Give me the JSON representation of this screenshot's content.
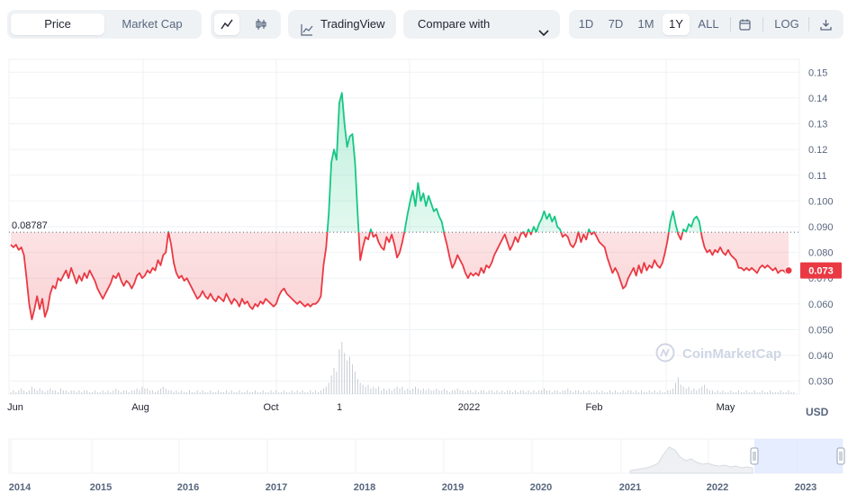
{
  "toolbar": {
    "price_label": "Price",
    "market_cap_label": "Market Cap",
    "line_icon": "line-chart-icon",
    "candle_icon": "candlestick-icon",
    "tradingview_label": "TradingView",
    "tradingview_icon": "tradingview-icon",
    "compare_label": "Compare with",
    "compare_icon": "chevron-down-icon",
    "ranges": [
      "1D",
      "7D",
      "1M",
      "1Y",
      "ALL"
    ],
    "active_range": "1Y",
    "calendar_icon": "calendar-icon",
    "log_label": "LOG",
    "download_icon": "download-icon"
  },
  "watermark": "CoinMarketCap",
  "currency_label": "USD",
  "colors": {
    "up": "#16c784",
    "down": "#ea3943",
    "grid": "#eff2f5",
    "text": "#58667e",
    "navigator_fill": "#dbe5ff"
  },
  "chart_data": {
    "type": "line",
    "title": "",
    "xlabel": "",
    "ylabel": "",
    "y_unit": "USD",
    "ylim": [
      0.025,
      0.155
    ],
    "y_ticks": [
      "0.030",
      "0.040",
      "0.050",
      "0.060",
      "0.070",
      "0.080",
      "0.090",
      "0.100",
      "0.11",
      "0.12",
      "0.13",
      "0.14",
      "0.15"
    ],
    "x_tick_labels": [
      "Jun",
      "Aug",
      "Oct",
      "1",
      "2022",
      "Feb",
      "May"
    ],
    "baseline_value": 0.08787,
    "baseline_label": "0.08787",
    "current_price_label": "0.073",
    "grid": true,
    "legend": "none",
    "series": [
      {
        "values": [
          0.083,
          0.082,
          0.083,
          0.081,
          0.082,
          0.079,
          0.07,
          0.06,
          0.054,
          0.058,
          0.063,
          0.058,
          0.062,
          0.055,
          0.058,
          0.064,
          0.067,
          0.066,
          0.07,
          0.069,
          0.071,
          0.073,
          0.07,
          0.074,
          0.071,
          0.068,
          0.071,
          0.069,
          0.072,
          0.07,
          0.073,
          0.071,
          0.069,
          0.066,
          0.064,
          0.062,
          0.064,
          0.066,
          0.068,
          0.071,
          0.07,
          0.072,
          0.069,
          0.067,
          0.069,
          0.068,
          0.066,
          0.068,
          0.071,
          0.072,
          0.07,
          0.071,
          0.073,
          0.072,
          0.074,
          0.073,
          0.077,
          0.075,
          0.079,
          0.08,
          0.088,
          0.083,
          0.076,
          0.072,
          0.07,
          0.071,
          0.069,
          0.07,
          0.068,
          0.066,
          0.064,
          0.062,
          0.063,
          0.065,
          0.063,
          0.062,
          0.064,
          0.062,
          0.061,
          0.063,
          0.062,
          0.061,
          0.064,
          0.062,
          0.06,
          0.062,
          0.061,
          0.059,
          0.062,
          0.06,
          0.061,
          0.059,
          0.058,
          0.06,
          0.059,
          0.061,
          0.06,
          0.062,
          0.061,
          0.06,
          0.059,
          0.06,
          0.063,
          0.065,
          0.066,
          0.064,
          0.063,
          0.062,
          0.061,
          0.06,
          0.061,
          0.06,
          0.059,
          0.06,
          0.059,
          0.06,
          0.06,
          0.061,
          0.063,
          0.075,
          0.082,
          0.095,
          0.115,
          0.12,
          0.116,
          0.138,
          0.142,
          0.13,
          0.121,
          0.125,
          0.126,
          0.115,
          0.095,
          0.077,
          0.082,
          0.086,
          0.085,
          0.089,
          0.086,
          0.087,
          0.084,
          0.082,
          0.081,
          0.086,
          0.084,
          0.087,
          0.083,
          0.078,
          0.08,
          0.084,
          0.089,
          0.095,
          0.1,
          0.104,
          0.098,
          0.107,
          0.1,
          0.103,
          0.098,
          0.102,
          0.099,
          0.096,
          0.097,
          0.094,
          0.092,
          0.087,
          0.083,
          0.078,
          0.074,
          0.076,
          0.079,
          0.077,
          0.075,
          0.072,
          0.07,
          0.072,
          0.071,
          0.072,
          0.071,
          0.074,
          0.072,
          0.075,
          0.074,
          0.076,
          0.079,
          0.081,
          0.083,
          0.085,
          0.087,
          0.084,
          0.081,
          0.083,
          0.086,
          0.084,
          0.087,
          0.088,
          0.086,
          0.089,
          0.087,
          0.09,
          0.088,
          0.091,
          0.093,
          0.096,
          0.093,
          0.095,
          0.092,
          0.094,
          0.09,
          0.089,
          0.086,
          0.087,
          0.086,
          0.083,
          0.082,
          0.084,
          0.088,
          0.084,
          0.087,
          0.085,
          0.089,
          0.087,
          0.088,
          0.086,
          0.084,
          0.083,
          0.082,
          0.078,
          0.075,
          0.072,
          0.074,
          0.072,
          0.069,
          0.066,
          0.067,
          0.07,
          0.072,
          0.074,
          0.071,
          0.075,
          0.072,
          0.076,
          0.073,
          0.075,
          0.074,
          0.077,
          0.075,
          0.074,
          0.076,
          0.08,
          0.085,
          0.092,
          0.096,
          0.091,
          0.087,
          0.085,
          0.089,
          0.088,
          0.091,
          0.09,
          0.093,
          0.094,
          0.092,
          0.086,
          0.082,
          0.08,
          0.081,
          0.079,
          0.081,
          0.08,
          0.082,
          0.08,
          0.079,
          0.081,
          0.079,
          0.078,
          0.077,
          0.074,
          0.074,
          0.073,
          0.074,
          0.073,
          0.074,
          0.073,
          0.072,
          0.074,
          0.075,
          0.074,
          0.075,
          0.074,
          0.073,
          0.074,
          0.072,
          0.073,
          0.073,
          0.072,
          0.073
        ]
      }
    ],
    "volume": [
      1,
      2,
      1,
      2,
      3,
      2,
      1,
      2,
      4,
      3,
      2,
      3,
      2,
      1,
      2,
      3,
      2,
      2,
      1,
      3,
      2,
      2,
      1,
      2,
      2,
      1,
      2,
      1,
      2,
      2,
      1,
      1,
      2,
      1,
      1,
      2,
      1,
      2,
      1,
      2,
      3,
      2,
      1,
      2,
      2,
      1,
      2,
      2,
      3,
      2,
      4,
      3,
      3,
      2,
      2,
      1,
      2,
      3,
      4,
      3,
      2,
      2,
      1,
      2,
      1,
      2,
      1,
      1,
      2,
      1,
      1,
      2,
      1,
      2,
      1,
      1,
      2,
      1,
      1,
      2,
      1,
      1,
      2,
      1,
      2,
      1,
      1,
      2,
      1,
      1,
      2,
      1,
      1,
      2,
      1,
      1,
      2,
      1,
      1,
      2,
      1,
      2,
      1,
      1,
      2,
      1,
      1,
      2,
      1,
      2,
      1,
      2,
      1,
      1,
      2,
      1,
      2,
      1,
      2,
      3,
      4,
      6,
      10,
      14,
      12,
      24,
      28,
      22,
      18,
      20,
      16,
      12,
      8,
      6,
      5,
      4,
      5,
      3,
      4,
      3,
      4,
      2,
      3,
      2,
      3,
      2,
      3,
      4,
      3,
      4,
      2,
      3,
      2,
      3,
      4,
      3,
      2,
      3,
      2,
      3,
      2,
      2,
      3,
      2,
      2,
      3,
      2,
      1,
      2,
      2,
      3,
      2,
      2,
      1,
      2,
      2,
      1,
      2,
      1,
      2,
      2,
      1,
      2,
      2,
      1,
      2,
      1,
      2,
      1,
      2,
      2,
      1,
      2,
      1,
      2,
      2,
      1,
      2,
      1,
      2,
      1,
      2,
      2,
      3,
      2,
      2,
      1,
      2,
      2,
      1,
      2,
      2,
      3,
      2,
      1,
      2,
      2,
      1,
      2,
      1,
      2,
      1,
      1,
      2,
      1,
      2,
      1,
      1,
      2,
      1,
      2,
      1,
      1,
      2,
      1,
      2,
      2,
      1,
      2,
      1,
      2,
      1,
      1,
      2,
      1,
      2,
      1,
      2,
      1,
      1,
      2,
      2,
      3,
      6,
      9,
      5,
      4,
      3,
      4,
      2,
      3,
      2,
      3,
      4,
      5,
      3,
      2,
      2,
      1,
      2,
      1,
      2,
      1,
      1,
      2,
      1,
      1,
      2,
      1,
      1,
      2,
      1,
      1,
      2,
      1,
      1,
      2,
      1,
      1,
      2,
      1,
      1,
      1,
      2,
      1,
      1,
      2,
      1,
      1
    ],
    "navigator_years": [
      "2014",
      "2015",
      "2016",
      "2017",
      "2018",
      "2019",
      "2020",
      "2021",
      "2022",
      "2023"
    ]
  }
}
